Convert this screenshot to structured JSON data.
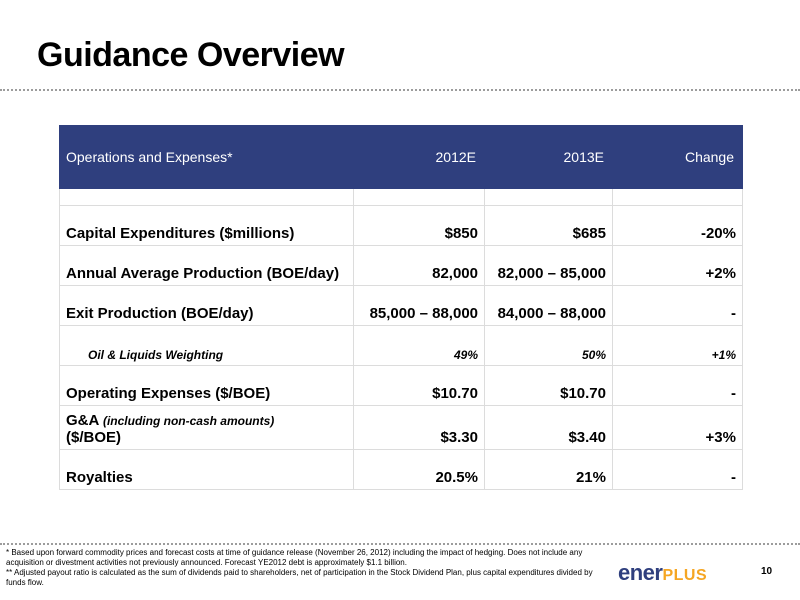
{
  "slide": {
    "title": "Guidance Overview",
    "page_number": "10"
  },
  "table": {
    "headers": [
      "Operations and Expenses*",
      "2012E",
      "2013E",
      "Change"
    ],
    "rows": [
      {
        "label": "Capital Expenditures ($millions)",
        "y2012": "$850",
        "y2013": "$685",
        "change": "-20%"
      },
      {
        "label": "Annual Average Production (BOE/day)",
        "y2012": "82,000",
        "y2013": "82,000 – 85,000",
        "change": "+2%"
      },
      {
        "label": "Exit Production (BOE/day)",
        "y2012": "85,000 – 88,000",
        "y2013": "84,000 – 88,000",
        "change": "-"
      },
      {
        "label": "Oil & Liquids Weighting",
        "y2012": "49%",
        "y2013": "50%",
        "change": "+1%"
      },
      {
        "label": "Operating Expenses ($/BOE)",
        "y2012": "$10.70",
        "y2013": "$10.70",
        "change": "-"
      },
      {
        "label_line1": "G&A",
        "label_note": "(including non-cash amounts)",
        "label_line2": "($/BOE)",
        "y2012": "$3.30",
        "y2013": "$3.40",
        "change": "+3%"
      },
      {
        "label": "Royalties",
        "y2012": "20.5%",
        "y2013": "21%",
        "change": "-"
      }
    ]
  },
  "footnotes": {
    "note1": "* Based upon forward commodity prices and forecast costs at time of guidance release (November 26, 2012) including the impact of hedging.  Does not include any acquisition or divestment activities not previously announced.  Forecast YE2012 debt is approximately $1.1 billion.",
    "note2": "** Adjusted payout ratio is calculated as the sum of dividends paid to shareholders, net of participation in the Stock Dividend Plan, plus capital expenditures divided by funds flow."
  },
  "logo": {
    "part1": "ener",
    "part2": "PLUS"
  },
  "colors": {
    "header_bg": "#2f3f7e",
    "logo_accent": "#f5a623"
  }
}
